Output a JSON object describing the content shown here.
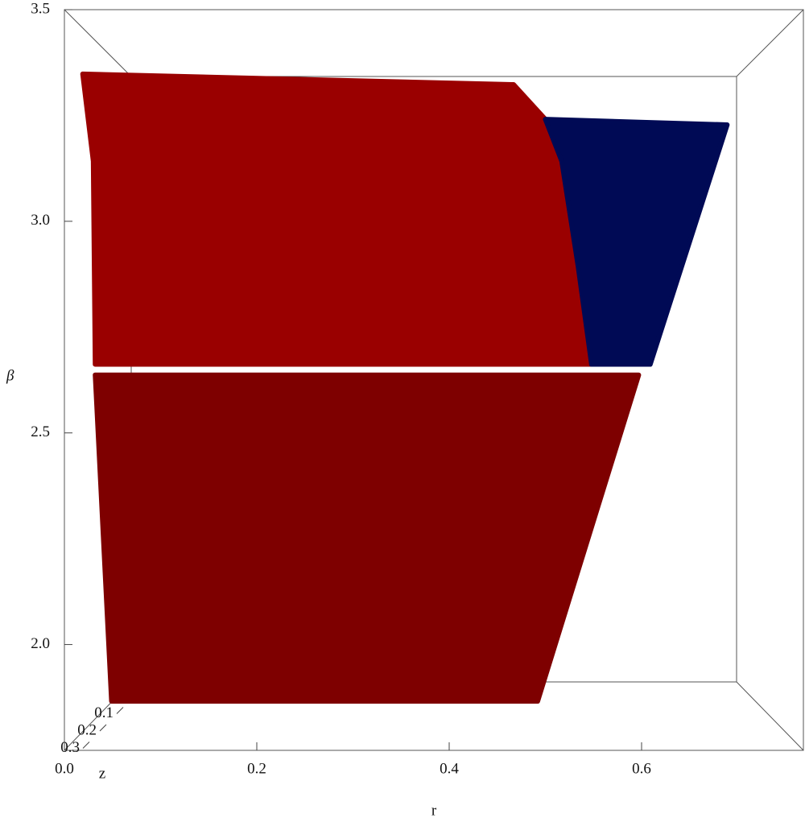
{
  "chart_data": {
    "type": "region3d",
    "x_label": "r",
    "y_label": "β",
    "z_label": "z",
    "xlim": [
      0,
      0.7682
    ],
    "ylim": [
      1.75,
      3.5
    ],
    "xticks": [
      {
        "value": 0,
        "label": "0.0"
      },
      0.2,
      0.4,
      0.6
    ],
    "yticks": [
      {
        "value": 2,
        "label": "2.0"
      },
      2.5,
      {
        "value": 3,
        "label": "3.0"
      },
      3.5
    ],
    "zticks": [
      {
        "value": 0,
        "label": "0.0"
      },
      0.1,
      0.2,
      0.3
    ],
    "series": [
      {
        "color": "#9a0000",
        "x": [
          0.019,
          0.467,
          0.5,
          0.517,
          0.534,
          0.548,
          0.032,
          0.03
        ],
        "y": [
          3.348,
          3.323,
          3.241,
          3.142,
          2.894,
          2.662,
          2.662,
          3.142
        ]
      },
      {
        "color": "#000a55",
        "x": [
          0.5,
          0.689,
          0.609,
          0.548,
          0.534,
          0.517
        ],
        "y": [
          3.241,
          3.228,
          2.662,
          2.662,
          2.894,
          3.142
        ]
      },
      {
        "color": "#7e0000",
        "x": [
          0.032,
          0.597,
          0.492,
          0.049
        ],
        "y": [
          2.637,
          2.637,
          1.866,
          1.866
        ]
      }
    ]
  }
}
